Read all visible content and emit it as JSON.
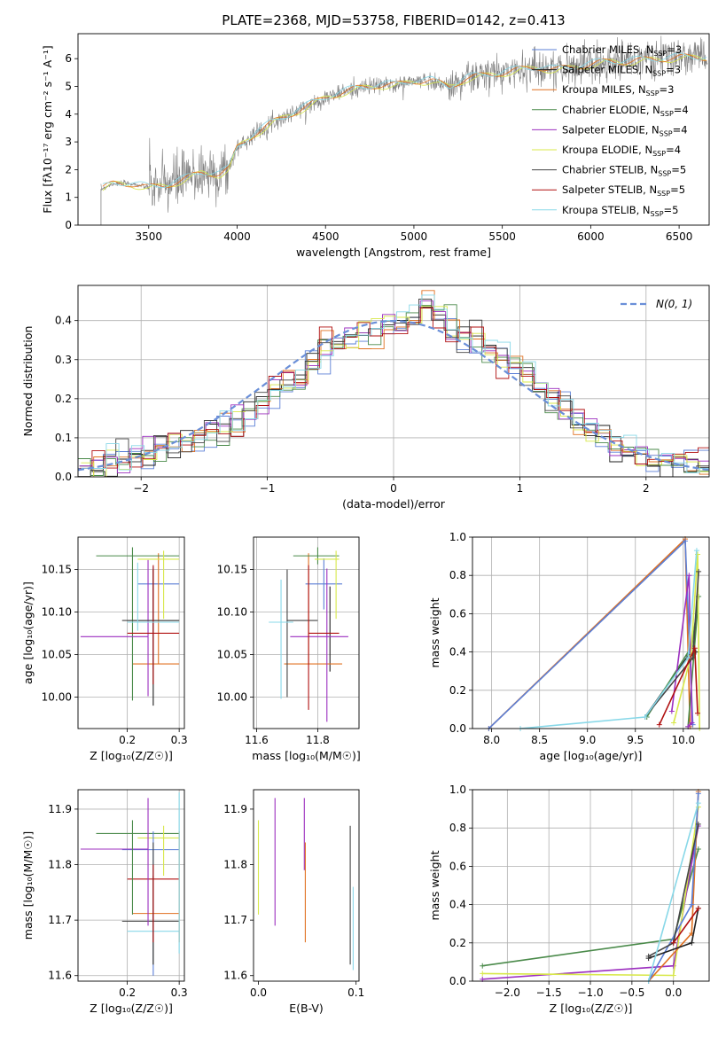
{
  "figure_title": "PLATE=2368, MJD=53758, FIBERID=0142, z=0.413",
  "colors": {
    "Chabrier MILES": "#5b7fd6",
    "Salpeter MILES": "#1f1f1f",
    "Kroupa MILES": "#e07020",
    "Chabrier ELODIE": "#4a8a4a",
    "Salpeter ELODIE": "#9c2fbf",
    "Kroupa ELODIE": "#d8e84a",
    "Chabrier STELIB": "#444444",
    "Salpeter STELIB": "#b01010",
    "Kroupa STELIB": "#88d8e8",
    "data": "#808080",
    "normal": "#6a8fd8",
    "grid": "#b0b0b0"
  },
  "chart_data": [
    {
      "id": "spectrum",
      "type": "line",
      "xlabel": "wavelength [Angstrom, rest frame]",
      "ylabel": "Flux [fλ10⁻¹⁷ erg cm⁻² s⁻¹ A⁻¹]",
      "xlim": [
        3100,
        6670
      ],
      "ylim": [
        0,
        6.9
      ],
      "xticks": [
        3500,
        4000,
        4500,
        5000,
        5500,
        6000,
        6500
      ],
      "yticks": [
        0,
        1,
        2,
        3,
        4,
        5,
        6
      ],
      "grid": false,
      "legend": "upper right",
      "legend_entries": [
        "Chabrier MILES, N_SSP=3",
        "Salpeter MILES, N_SSP=3",
        "Kroupa MILES, N_SSP=3",
        "Chabrier ELODIE, N_SSP=4",
        "Salpeter ELODIE, N_SSP=4",
        "Kroupa ELODIE, N_SSP=4",
        "Chabrier STELIB, N_SSP=5",
        "Salpeter STELIB, N_SSP=5",
        "Kroupa STELIB, N_SSP=5"
      ],
      "continuum": {
        "x": [
          3230,
          3300,
          3400,
          3500,
          3600,
          3700,
          3800,
          3900,
          3950,
          4000,
          4100,
          4200,
          4300,
          4400,
          4500,
          4600,
          4700,
          4800,
          4900,
          5000,
          5100,
          5200,
          5300,
          5400,
          5500,
          5600,
          5700,
          5800,
          5900,
          6000,
          6100,
          6200,
          6300,
          6400,
          6500,
          6600
        ],
        "y": [
          1.3,
          1.5,
          1.5,
          1.35,
          1.45,
          1.65,
          1.9,
          1.85,
          2.0,
          2.8,
          3.3,
          3.7,
          4.0,
          4.3,
          4.6,
          4.8,
          4.95,
          5.05,
          5.05,
          5.2,
          5.2,
          5.0,
          5.3,
          5.4,
          5.5,
          5.6,
          5.7,
          5.6,
          5.7,
          5.8,
          5.9,
          5.9,
          5.95,
          6.0,
          6.05,
          6.05
        ]
      }
    },
    {
      "id": "residuals",
      "type": "histogram",
      "xlabel": "(data-model)/error",
      "ylabel": "Normed distribution",
      "xlim": [
        -2.5,
        2.5
      ],
      "ylim": [
        0,
        0.49
      ],
      "xticks": [
        -2,
        -1,
        0,
        1,
        2
      ],
      "yticks": [
        0.0,
        0.1,
        0.2,
        0.3,
        0.4
      ],
      "grid": true,
      "legend": "upper right",
      "legend_entry": "N(0, 1)",
      "bin_width": 0.1,
      "counts_reference": [
        0.02,
        0.03,
        0.04,
        0.04,
        0.05,
        0.06,
        0.07,
        0.08,
        0.09,
        0.1,
        0.12,
        0.13,
        0.14,
        0.16,
        0.2,
        0.23,
        0.24,
        0.25,
        0.29,
        0.32,
        0.34,
        0.35,
        0.36,
        0.37,
        0.38,
        0.39,
        0.41,
        0.44,
        0.41,
        0.38,
        0.36,
        0.35,
        0.34,
        0.31,
        0.28,
        0.26,
        0.24,
        0.2,
        0.17,
        0.14,
        0.12,
        0.1,
        0.08,
        0.07,
        0.05,
        0.04,
        0.04,
        0.03,
        0.03,
        0.03
      ]
    },
    {
      "id": "age-vs-Z",
      "type": "errorbar",
      "xlabel": "Z [log₁₀(Z/Z☉)]",
      "ylabel": "age  [log₁₀(age/yr)]",
      "xlim": [
        0.105,
        0.31
      ],
      "ylim": [
        9.963,
        10.188
      ],
      "xticks": [
        0.2,
        0.3
      ],
      "yticks": [
        10.0,
        10.05,
        10.1,
        10.15
      ],
      "grid": true,
      "points": [
        {
          "series": "Chabrier MILES",
          "x": 0.25,
          "xerr": [
            0.03,
            0.05
          ],
          "y": 10.133,
          "yerr": [
            0.1,
            0.02
          ]
        },
        {
          "series": "Salpeter MILES",
          "x": 0.25,
          "xerr": [
            0.05,
            0.05
          ],
          "y": 10.09,
          "yerr": [
            0.1,
            0.06
          ]
        },
        {
          "series": "Kroupa MILES",
          "x": 0.26,
          "xerr": [
            0.05,
            0.04
          ],
          "y": 10.039,
          "yerr": [
            0.0,
            0.13
          ]
        },
        {
          "series": "Chabrier ELODIE",
          "x": 0.21,
          "xerr": [
            0.07,
            0.09
          ],
          "y": 10.166,
          "yerr": [
            0.17,
            0.01
          ]
        },
        {
          "series": "Salpeter ELODIE",
          "x": 0.24,
          "xerr": [
            0.13,
            0.0
          ],
          "y": 10.071,
          "yerr": [
            0.07,
            0.09
          ]
        },
        {
          "series": "Kroupa ELODIE",
          "x": 0.27,
          "xerr": [
            0.05,
            0.03
          ],
          "y": 10.162,
          "yerr": [
            0.07,
            0.01
          ]
        },
        {
          "series": "Chabrier STELIB",
          "x": 0.25,
          "xerr": [
            0.06,
            0.05
          ],
          "y": 10.09,
          "yerr": [
            0.09,
            0.06
          ]
        },
        {
          "series": "Salpeter STELIB",
          "x": 0.25,
          "xerr": [
            0.05,
            0.05
          ],
          "y": 10.075,
          "yerr": [
            0.06,
            0.08
          ]
        },
        {
          "series": "Kroupa STELIB",
          "x": 0.22,
          "xerr": [
            0.02,
            0.08
          ],
          "y": 10.088,
          "yerr": [
            0.01,
            0.07
          ]
        }
      ]
    },
    {
      "id": "age-vs-mass",
      "type": "errorbar",
      "xlabel": "mass [log₁₀(M/M☉)]",
      "ylabel": "",
      "xlim": [
        11.59,
        11.935
      ],
      "ylim": [
        9.963,
        10.188
      ],
      "xticks": [
        11.6,
        11.8
      ],
      "yticks": [
        10.0,
        10.05,
        10.1,
        10.15
      ],
      "grid": true,
      "points": [
        {
          "series": "Chabrier MILES",
          "x": 11.82,
          "xerr": [
            0.06,
            0.06
          ],
          "y": 10.133,
          "yerr": [
            0.03,
            0.03
          ]
        },
        {
          "series": "Salpeter MILES",
          "x": 11.84,
          "xerr": [
            0.0,
            0.0
          ],
          "y": 10.1,
          "yerr": [
            0.07,
            0.03
          ]
        },
        {
          "series": "Kroupa MILES",
          "x": 11.77,
          "xerr": [
            0.08,
            0.11
          ],
          "y": 10.039,
          "yerr": [
            0.0,
            0.13
          ]
        },
        {
          "series": "Chabrier ELODIE",
          "x": 11.8,
          "xerr": [
            0.08,
            0.07
          ],
          "y": 10.166,
          "yerr": [
            0.01,
            0.01
          ]
        },
        {
          "series": "Salpeter ELODIE",
          "x": 11.83,
          "xerr": [
            0.12,
            0.07
          ],
          "y": 10.071,
          "yerr": [
            0.1,
            0.08
          ]
        },
        {
          "series": "Kroupa ELODIE",
          "x": 11.86,
          "xerr": [
            0.07,
            0.01
          ],
          "y": 10.162,
          "yerr": [
            0.07,
            0.01
          ]
        },
        {
          "series": "Chabrier STELIB",
          "x": 11.7,
          "xerr": [
            0.0,
            0.1
          ],
          "y": 10.09,
          "yerr": [
            0.09,
            0.06
          ]
        },
        {
          "series": "Salpeter STELIB",
          "x": 11.77,
          "xerr": [
            0.0,
            0.1
          ],
          "y": 10.075,
          "yerr": [
            0.09,
            0.08
          ]
        },
        {
          "series": "Kroupa STELIB",
          "x": 11.68,
          "xerr": [
            0.04,
            0.04
          ],
          "y": 10.088,
          "yerr": [
            0.09,
            0.05
          ]
        }
      ]
    },
    {
      "id": "weight-vs-age",
      "type": "line",
      "xlabel": "age  [log₁₀(age/yr)]",
      "ylabel": "mass weight",
      "xlim": [
        7.8,
        10.27
      ],
      "ylim": [
        0,
        1.0
      ],
      "xticks": [
        8.0,
        8.5,
        9.0,
        9.5,
        10.0
      ],
      "yticks": [
        0.0,
        0.2,
        0.4,
        0.6,
        0.8,
        1.0
      ],
      "grid": true,
      "series": [
        {
          "name": "Kroupa MILES",
          "x": [
            7.97,
            10.02,
            10.07
          ],
          "y": [
            0.0,
            0.99,
            0.01
          ]
        },
        {
          "name": "Chabrier MILES",
          "x": [
            7.97,
            10.02,
            10.1
          ],
          "y": [
            0.0,
            0.98,
            0.02
          ]
        },
        {
          "name": "Salpeter MILES",
          "x": [
            9.6,
            10.05,
            10.13
          ],
          "y": [
            0.06,
            0.38,
            0.4
          ]
        },
        {
          "name": "Chabrier ELODIE",
          "x": [
            9.62,
            10.09,
            10.16,
            10.05
          ],
          "y": [
            0.06,
            0.43,
            0.69,
            0.01
          ]
        },
        {
          "name": "Salpeter ELODIE",
          "x": [
            9.88,
            10.06,
            10.09,
            10.05
          ],
          "y": [
            0.09,
            0.8,
            0.03,
            0.01
          ]
        },
        {
          "name": "Kroupa ELODIE",
          "x": [
            9.9,
            10.08,
            10.15,
            10.17
          ],
          "y": [
            0.03,
            0.38,
            0.91,
            0.0
          ]
        },
        {
          "name": "Chabrier STELIB",
          "x": [
            9.6,
            10.1,
            10.16
          ],
          "y": [
            0.06,
            0.37,
            0.82
          ]
        },
        {
          "name": "Salpeter STELIB",
          "x": [
            9.75,
            10.12,
            10.15
          ],
          "y": [
            0.02,
            0.42,
            0.08
          ]
        },
        {
          "name": "Kroupa STELIB",
          "x": [
            8.3,
            9.6,
            10.05,
            10.14
          ],
          "y": [
            0.0,
            0.06,
            0.37,
            0.93
          ]
        }
      ]
    },
    {
      "id": "mass-vs-Z",
      "type": "errorbar",
      "xlabel": "Z [log₁₀(Z/Z☉)]",
      "ylabel": "mass [log₁₀(M/M☉)]",
      "xlim": [
        0.105,
        0.31
      ],
      "ylim": [
        11.59,
        11.935
      ],
      "xticks": [
        0.2,
        0.3
      ],
      "yticks": [
        11.6,
        11.7,
        11.8,
        11.9
      ],
      "grid": true,
      "points": [
        {
          "series": "Chabrier MILES",
          "x": 0.25,
          "xerr": [
            0.06,
            0.05
          ],
          "y": 11.827,
          "yerr": [
            0.0,
            0.0
          ]
        },
        {
          "series": "Salpeter MILES",
          "x": 0.25,
          "xerr": [
            0.0,
            0.0
          ],
          "y": 11.8,
          "yerr": [
            0.0,
            0.0
          ]
        },
        {
          "series": "Kroupa MILES",
          "x": 0.26,
          "xerr": [
            0.05,
            0.04
          ],
          "y": 11.712,
          "yerr": [
            0.0,
            0.0
          ]
        },
        {
          "series": "Chabrier ELODIE",
          "x": 0.21,
          "xerr": [
            0.07,
            0.09
          ],
          "y": 11.856,
          "yerr": [
            0.0,
            0.0
          ]
        },
        {
          "series": "Salpeter ELODIE",
          "x": 0.24,
          "xerr": [
            0.13,
            0.0
          ],
          "y": 11.828,
          "yerr": [
            0.0,
            0.0
          ]
        },
        {
          "series": "Kroupa ELODIE",
          "x": 0.27,
          "xerr": [
            0.05,
            0.03
          ],
          "y": 11.848,
          "yerr": [
            0.0,
            0.0
          ]
        },
        {
          "series": "Chabrier STELIB",
          "x": 0.25,
          "xerr": [
            0.06,
            0.05
          ],
          "y": 11.698,
          "yerr": [
            0.0,
            0.0
          ]
        },
        {
          "series": "Salpeter STELIB",
          "x": 0.25,
          "xerr": [
            0.05,
            0.05
          ],
          "y": 11.774,
          "yerr": [
            0.0,
            0.0
          ]
        },
        {
          "series": "Kroupa STELIB",
          "x": 0.22,
          "xerr": [
            0.02,
            0.08
          ],
          "y": 11.68,
          "yerr": [
            0.0,
            0.0
          ]
        }
      ],
      "vertical_bars": [
        {
          "series": "Chabrier MILES",
          "x": 0.25,
          "ylow": 11.6,
          "yhigh": 11.86
        },
        {
          "series": "Salpeter MILES",
          "x": 0.25,
          "ylow": 11.62,
          "yhigh": 11.78
        },
        {
          "series": "Kroupa MILES",
          "x": 0.3,
          "ylow": 11.66,
          "yhigh": 11.86
        },
        {
          "series": "Chabrier ELODIE",
          "x": 0.21,
          "ylow": 11.71,
          "yhigh": 11.88
        },
        {
          "series": "Salpeter ELODIE",
          "x": 0.24,
          "ylow": 11.69,
          "yhigh": 11.92
        },
        {
          "series": "Kroupa ELODIE",
          "x": 0.27,
          "ylow": 11.78,
          "yhigh": 11.87
        },
        {
          "series": "Chabrier STELIB",
          "x": 0.25,
          "ylow": 11.62,
          "yhigh": 11.84
        },
        {
          "series": "Salpeter STELIB",
          "x": 0.25,
          "ylow": 11.66,
          "yhigh": 11.8
        },
        {
          "series": "Kroupa STELIB",
          "x": 0.3,
          "ylow": 11.64,
          "yhigh": 11.93
        }
      ]
    },
    {
      "id": "mass-vs-EBV",
      "type": "errorbar",
      "xlabel": "E(B-V)",
      "ylabel": "",
      "xlim": [
        -0.005,
        0.103
      ],
      "ylim": [
        11.59,
        11.935
      ],
      "xticks": [
        0.0,
        0.1
      ],
      "yticks": [
        11.6,
        11.7,
        11.8,
        11.9
      ],
      "grid": false,
      "vertical_bars": [
        {
          "series": "Kroupa ELODIE",
          "x": 0.0,
          "ylow": 11.71,
          "yhigh": 11.88
        },
        {
          "series": "Salpeter ELODIE",
          "x": 0.017,
          "ylow": 11.69,
          "yhigh": 11.92
        },
        {
          "series": "Salpeter ELODIE",
          "x": 0.047,
          "ylow": 11.79,
          "yhigh": 11.92
        },
        {
          "series": "Kroupa MILES",
          "x": 0.048,
          "ylow": 11.66,
          "yhigh": 11.84
        },
        {
          "series": "Chabrier STELIB",
          "x": 0.094,
          "ylow": 11.62,
          "yhigh": 11.87
        },
        {
          "series": "Kroupa STELIB",
          "x": 0.097,
          "ylow": 11.61,
          "yhigh": 11.76
        }
      ]
    },
    {
      "id": "weight-vs-Z",
      "type": "line",
      "xlabel": "Z [log₁₀(Z/Z☉)]",
      "ylabel": "mass weight",
      "xlim": [
        -2.42,
        0.43
      ],
      "ylim": [
        0,
        1.0
      ],
      "xticks": [
        -2.0,
        -1.5,
        -1.0,
        -0.5,
        0.0
      ],
      "yticks": [
        0.0,
        0.2,
        0.4,
        0.6,
        0.8,
        1.0
      ],
      "grid": true,
      "series": [
        {
          "name": "Chabrier ELODIE",
          "x": [
            -2.3,
            0.0,
            0.3
          ],
          "y": [
            0.08,
            0.22,
            0.69
          ]
        },
        {
          "name": "Salpeter ELODIE",
          "x": [
            -2.3,
            0.0,
            0.3
          ],
          "y": [
            0.01,
            0.08,
            0.81
          ]
        },
        {
          "name": "Kroupa ELODIE",
          "x": [
            -2.3,
            0.0,
            0.3
          ],
          "y": [
            0.04,
            0.03,
            0.91
          ]
        },
        {
          "name": "Kroupa MILES",
          "x": [
            -0.3,
            0.22,
            0.3
          ],
          "y": [
            0.0,
            0.25,
            0.99
          ]
        },
        {
          "name": "Chabrier MILES",
          "x": [
            -0.3,
            0.22,
            0.3
          ],
          "y": [
            0.0,
            0.4,
            0.98
          ]
        },
        {
          "name": "Salpeter MILES",
          "x": [
            -0.3,
            0.22,
            0.3
          ],
          "y": [
            0.12,
            0.2,
            0.38
          ]
        },
        {
          "name": "Chabrier STELIB",
          "x": [
            -0.3,
            0.0,
            0.3
          ],
          "y": [
            0.13,
            0.2,
            0.82
          ]
        },
        {
          "name": "Salpeter STELIB",
          "x": [
            0.0,
            0.3
          ],
          "y": [
            0.2,
            0.38
          ]
        },
        {
          "name": "Kroupa STELIB",
          "x": [
            -0.3,
            0.3
          ],
          "y": [
            0.0,
            0.93
          ]
        }
      ]
    }
  ]
}
